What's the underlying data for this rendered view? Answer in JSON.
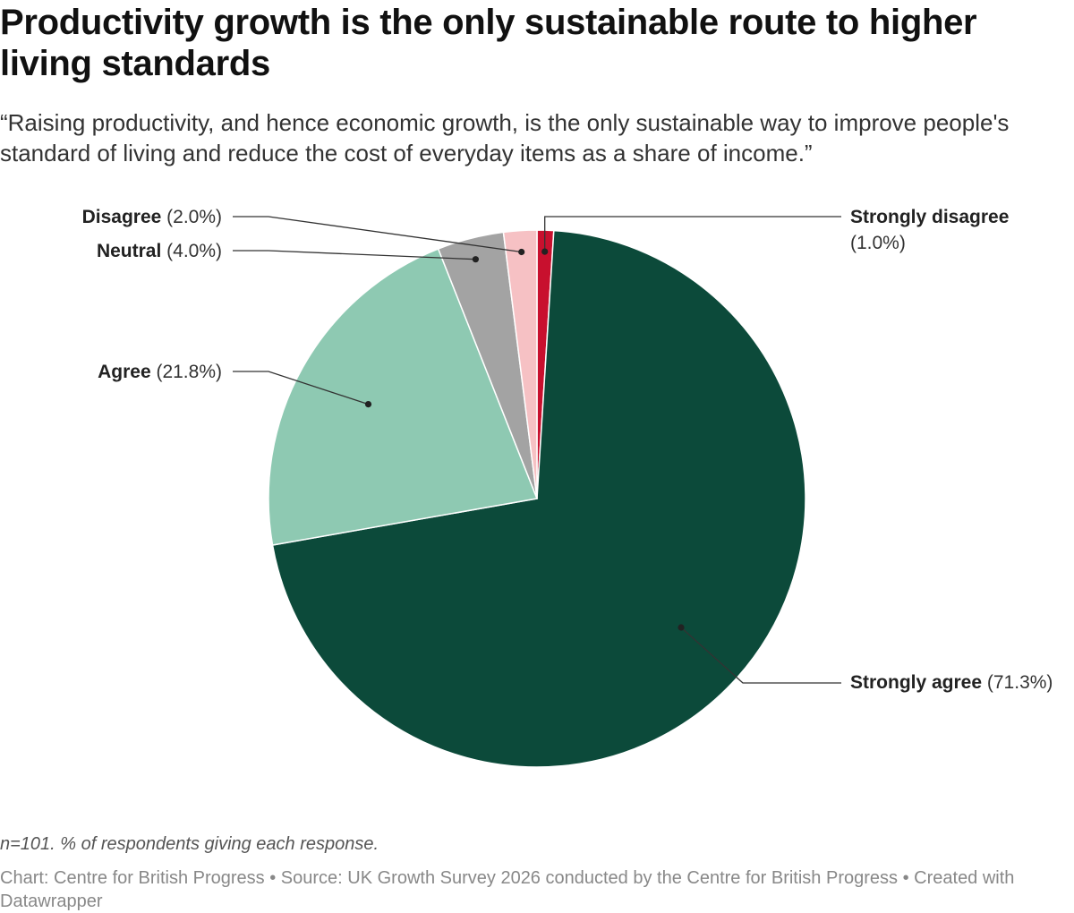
{
  "title": "Productivity growth is the only sustainable route to higher living standards",
  "subtitle": "“Raising productivity, and hence economic growth, is the only sustainable way to improve people's standard of living and reduce the cost of everyday items as a share of income.”",
  "notes": "n=101. % of respondents giving each response.",
  "footer": {
    "chart_credit": "Chart: Centre for British Progress",
    "separator": "•",
    "source": "Source: UK Growth Survey 2026 conducted by the Centre for British Progress",
    "created_with": "Created with Datawrapper"
  },
  "chart_data": {
    "type": "pie",
    "unit": "%",
    "slices": [
      {
        "label": "Strongly disagree",
        "value": 1.0,
        "value_label": "(1.0%)",
        "color": "#c8102e"
      },
      {
        "label": "Strongly agree",
        "value": 71.3,
        "value_label": "(71.3%)",
        "color": "#0c4a3a"
      },
      {
        "label": "Agree",
        "value": 21.8,
        "value_label": "(21.8%)",
        "color": "#8ec9b2"
      },
      {
        "label": "Neutral",
        "value": 4.0,
        "value_label": "(4.0%)",
        "color": "#a3a3a3"
      },
      {
        "label": "Disagree",
        "value": 2.0,
        "value_label": "(2.0%)",
        "color": "#f6c1c4"
      }
    ]
  }
}
